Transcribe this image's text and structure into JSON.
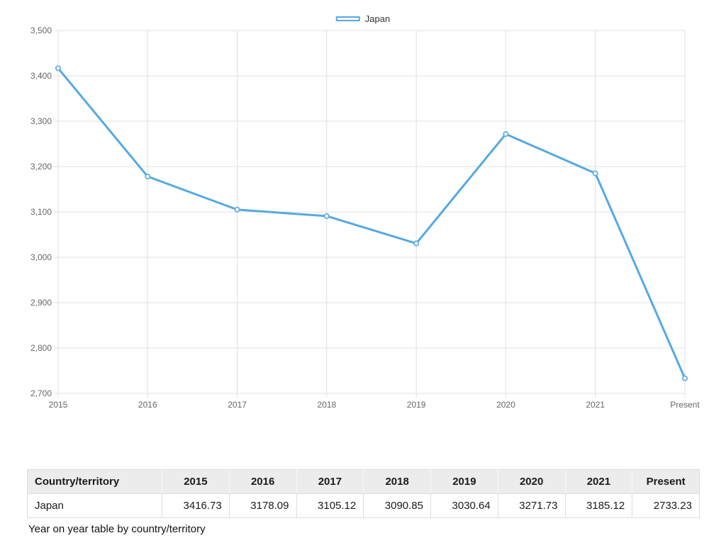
{
  "legend": {
    "label": "Japan"
  },
  "chart_data": {
    "type": "line",
    "title": "",
    "xlabel": "",
    "ylabel": "",
    "categories": [
      "2015",
      "2016",
      "2017",
      "2018",
      "2019",
      "2020",
      "2021",
      "Present"
    ],
    "series": [
      {
        "name": "Japan",
        "color": "#55a9e2",
        "values": [
          3416.73,
          3178.09,
          3105.12,
          3090.85,
          3030.64,
          3271.73,
          3185.12,
          2733.23
        ]
      }
    ],
    "ylim": [
      2700,
      3500
    ],
    "ytick_step": 100,
    "ytick_labels": [
      "2,700",
      "2,800",
      "2,900",
      "3,000",
      "3,100",
      "3,200",
      "3,300",
      "3,400",
      "3,500"
    ],
    "grid": true,
    "legend_position": "top-center"
  },
  "table": {
    "headers": [
      "Country/territory",
      "2015",
      "2016",
      "2017",
      "2018",
      "2019",
      "2020",
      "2021",
      "Present"
    ],
    "rows": [
      [
        "Japan",
        "3416.73",
        "3178.09",
        "3105.12",
        "3090.85",
        "3030.64",
        "3271.73",
        "3185.12",
        "2733.23"
      ]
    ]
  },
  "caption": "Year on year table by country/territory",
  "colors": {
    "line": "#55a9e2",
    "grid": "#e0e0e0",
    "axis_text": "#666666",
    "legend_text": "#333333",
    "table_header_bg": "#ececec",
    "table_border": "#dcdcdc",
    "table_text": "#1a1a1a"
  }
}
